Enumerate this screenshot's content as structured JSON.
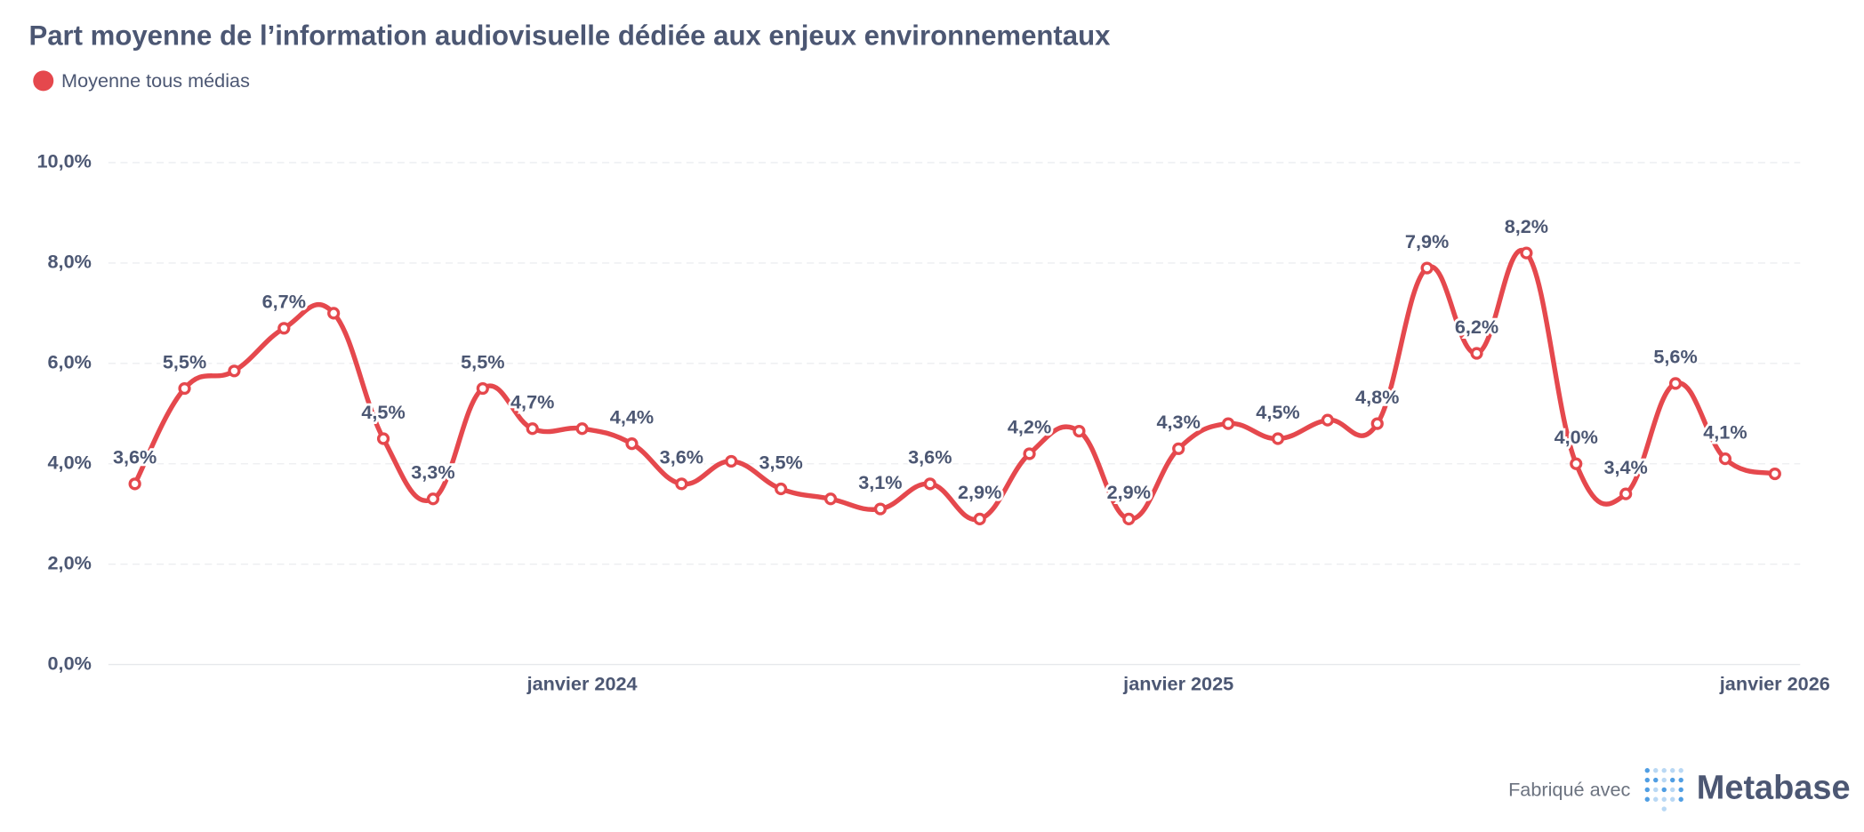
{
  "chart_data": {
    "type": "line",
    "title": "Part moyenne de l’information audiovisuelle dédiée aux enjeux environnementaux",
    "x": [
      "2023-04",
      "2023-05",
      "2023-06",
      "2023-07",
      "2023-08",
      "2023-09",
      "2023-10",
      "2023-11",
      "2023-12",
      "2024-01",
      "2024-02",
      "2024-03",
      "2024-04",
      "2024-05",
      "2024-06",
      "2024-07",
      "2024-08",
      "2024-09",
      "2024-10",
      "2024-11",
      "2024-12",
      "2025-01",
      "2025-02",
      "2025-03",
      "2025-04",
      "2025-05",
      "2025-06",
      "2025-07",
      "2025-08",
      "2025-09",
      "2025-10",
      "2025-11",
      "2025-12",
      "2026-01"
    ],
    "series": [
      {
        "name": "Moyenne tous médias",
        "color": "#e5484d",
        "values": [
          3.6,
          5.5,
          5.85,
          6.7,
          7.0,
          4.5,
          3.3,
          5.5,
          4.7,
          4.7,
          4.4,
          3.6,
          4.05,
          3.5,
          3.3,
          3.1,
          3.6,
          2.9,
          4.2,
          4.65,
          2.9,
          4.3,
          4.8,
          4.5,
          4.87,
          4.8,
          7.9,
          6.2,
          8.2,
          4.0,
          3.4,
          5.6,
          4.1,
          3.8
        ],
        "value_labels": [
          "3,6%",
          "5,5%",
          null,
          "6,7%",
          null,
          "4,5%",
          "3,3%",
          "5,5%",
          "4,7%",
          null,
          "4,4%",
          "3,6%",
          null,
          "3,5%",
          null,
          "3,1%",
          "3,6%",
          "2,9%",
          "4,2%",
          null,
          "2,9%",
          "4,3%",
          null,
          "4,5%",
          null,
          "4,8%",
          "7,9%",
          "6,2%",
          "8,2%",
          "4,0%",
          "3,4%",
          "5,6%",
          "4,1%",
          null
        ]
      }
    ],
    "ylim": [
      0,
      10
    ],
    "yticks": [
      {
        "value": 0,
        "label": "0,0%"
      },
      {
        "value": 2,
        "label": "2,0%"
      },
      {
        "value": 4,
        "label": "4,0%"
      },
      {
        "value": 6,
        "label": "6,0%"
      },
      {
        "value": 8,
        "label": "8,0%"
      },
      {
        "value": 10,
        "label": "10,0%"
      }
    ],
    "xticks": [
      {
        "value": "2024-01",
        "label": "janvier 2024"
      },
      {
        "value": "2025-01",
        "label": "janvier 2025"
      },
      {
        "value": "2026-01",
        "label": "janvier 2026"
      }
    ],
    "grid": true,
    "legend_position": "top-left"
  },
  "footer": {
    "made_with": "Fabriqué avec",
    "brand": "Metabase"
  }
}
